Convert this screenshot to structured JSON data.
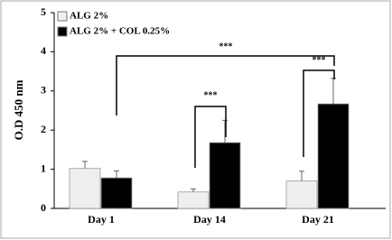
{
  "chart_data": {
    "type": "bar",
    "y_label": "O.D 450 nm",
    "categories": [
      "Day 1",
      "Day 14",
      "Day 21"
    ],
    "series": [
      {
        "name": "ALG 2%",
        "color": "#efefef",
        "values": [
          1.02,
          0.42,
          0.7
        ],
        "errors": [
          0.18,
          0.08,
          0.25
        ]
      },
      {
        "name": "ALG 2% + COL 0.25%",
        "color": "#000000",
        "values": [
          0.78,
          1.68,
          2.67
        ],
        "errors": [
          0.18,
          0.57,
          0.65
        ]
      }
    ],
    "ylim": [
      0,
      5
    ],
    "yticks": [
      0,
      1,
      2,
      3,
      4,
      5
    ],
    "grid": false,
    "annotations": [
      "***",
      "***",
      "***"
    ]
  }
}
